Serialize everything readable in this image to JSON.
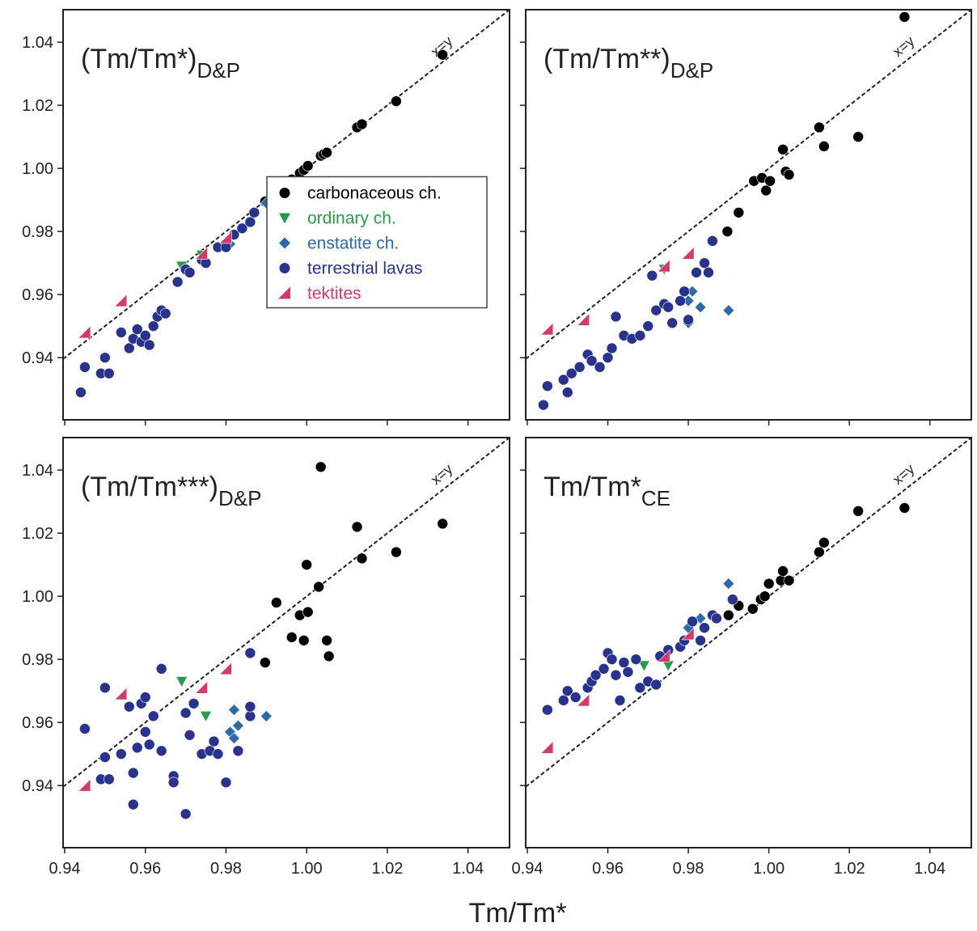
{
  "xlabel": "Tm/Tm*",
  "chart_data": [
    {
      "type": "scatter",
      "title": "(Tm/Tm*)",
      "title_sub": "D&P",
      "annotation": "x=y",
      "legend": "center-right",
      "xlim": [
        0.9396,
        1.0503
      ],
      "ylim": [
        0.9203,
        1.0503
      ],
      "xticks": [
        0.94,
        0.96,
        0.98,
        {
          "value": 1,
          "label": "1.00"
        },
        1.02,
        1.04
      ],
      "yticks": [
        0.94,
        0.96,
        0.98,
        {
          "value": 1,
          "label": "1.00"
        },
        1.02,
        1.04
      ],
      "series": [
        {
          "name": "carbonaceous ch.",
          "color": "#000000",
          "marker": "circle",
          "x": [
            0.9897,
            0.9925,
            0.9963,
            0.9983,
            0.9993,
            1.0003,
            1.0035,
            1.0042,
            1.005,
            1.0125,
            1.0137,
            1.0222,
            1.0337
          ],
          "values": [
            0.9895,
            0.9927,
            0.9965,
            0.9985,
            0.9995,
            1.0008,
            1.004,
            1.0045,
            1.005,
            1.013,
            1.014,
            1.0213,
            1.036
          ]
        },
        {
          "name": "ordinary ch.",
          "color": "#2a9a4a",
          "marker": "triangle-down",
          "x": [
            0.969,
            0.974
          ],
          "values": [
            0.969,
            0.9725
          ]
        },
        {
          "name": "enstatite ch.",
          "color": "#2a6aad",
          "marker": "diamond",
          "x": [
            0.99,
            0.981
          ],
          "values": [
            0.989,
            0.976
          ]
        },
        {
          "name": "terrestrial lavas",
          "color": "#27338d",
          "marker": "circle",
          "x": [
            0.944,
            0.945,
            0.949,
            0.95,
            0.951,
            0.954,
            0.956,
            0.957,
            0.958,
            0.959,
            0.96,
            0.961,
            0.962,
            0.963,
            0.964,
            0.965,
            0.968,
            0.97,
            0.971,
            0.974,
            0.975,
            0.978,
            0.98,
            0.982,
            0.984,
            0.986,
            0.987
          ],
          "values": [
            0.929,
            0.937,
            0.935,
            0.94,
            0.935,
            0.948,
            0.943,
            0.946,
            0.949,
            0.945,
            0.947,
            0.944,
            0.95,
            0.953,
            0.955,
            0.954,
            0.964,
            0.968,
            0.967,
            0.971,
            0.97,
            0.975,
            0.975,
            0.979,
            0.981,
            0.983,
            0.986
          ]
        },
        {
          "name": "tektites",
          "color": "#d33a6a",
          "marker": "flag",
          "x": [
            0.945,
            0.954,
            0.974,
            0.98
          ],
          "values": [
            0.948,
            0.958,
            0.973,
            0.978
          ]
        }
      ]
    },
    {
      "type": "scatter",
      "title": "(Tm/Tm**)",
      "title_sub": "D&P",
      "annotation": "x=y",
      "xlim": [
        0.9396,
        1.0503
      ],
      "ylim": [
        0.9203,
        1.0503
      ],
      "xticks": [
        0.94,
        0.96,
        0.98,
        {
          "value": 1,
          "label": "1.00"
        },
        1.02,
        1.04
      ],
      "yticks": [
        0.94,
        0.96,
        0.98,
        {
          "value": 1,
          "label": "1.00"
        },
        1.02,
        1.04
      ],
      "series": [
        {
          "name": "carbonaceous ch.",
          "color": "#000000",
          "marker": "circle",
          "x": [
            0.9897,
            0.9925,
            0.9963,
            0.9983,
            0.9993,
            1.0003,
            1.0035,
            1.0042,
            1.005,
            1.0125,
            1.0137,
            1.0222,
            1.0337
          ],
          "values": [
            0.98,
            0.986,
            0.996,
            0.997,
            0.993,
            0.996,
            1.006,
            0.999,
            0.998,
            1.013,
            1.007,
            1.01,
            1.048
          ]
        },
        {
          "name": "ordinary ch.",
          "color": "#2a9a4a",
          "marker": "triangle-down",
          "x": [
            0.974
          ],
          "values": [
            0.968
          ]
        },
        {
          "name": "enstatite ch.",
          "color": "#2a6aad",
          "marker": "diamond",
          "x": [
            0.98,
            0.981,
            0.983,
            0.98,
            0.99
          ],
          "values": [
            0.958,
            0.961,
            0.956,
            0.951,
            0.955
          ]
        },
        {
          "name": "terrestrial lavas",
          "color": "#27338d",
          "marker": "circle",
          "x": [
            0.944,
            0.945,
            0.949,
            0.95,
            0.951,
            0.953,
            0.955,
            0.956,
            0.958,
            0.96,
            0.961,
            0.962,
            0.964,
            0.966,
            0.968,
            0.97,
            0.971,
            0.972,
            0.974,
            0.975,
            0.976,
            0.978,
            0.979,
            0.98,
            0.982,
            0.984,
            0.986,
            0.985
          ],
          "values": [
            0.925,
            0.931,
            0.933,
            0.929,
            0.935,
            0.937,
            0.941,
            0.939,
            0.937,
            0.94,
            0.943,
            0.953,
            0.947,
            0.946,
            0.947,
            0.95,
            0.966,
            0.955,
            0.957,
            0.956,
            0.951,
            0.958,
            0.961,
            0.952,
            0.967,
            0.97,
            0.977,
            0.967
          ]
        },
        {
          "name": "tektites",
          "color": "#d33a6a",
          "marker": "flag",
          "x": [
            0.945,
            0.954,
            0.974,
            0.98
          ],
          "values": [
            0.949,
            0.952,
            0.969,
            0.973
          ]
        }
      ]
    },
    {
      "type": "scatter",
      "title": "(Tm/Tm***)",
      "title_sub": "D&P",
      "annotation": "x=y",
      "xlim": [
        0.9396,
        1.0503
      ],
      "ylim": [
        0.9203,
        1.0503
      ],
      "xticks": [
        0.94,
        0.96,
        0.98,
        {
          "value": 1,
          "label": "1.00"
        },
        1.02,
        1.04
      ],
      "yticks": [
        0.94,
        0.96,
        0.98,
        {
          "value": 1,
          "label": "1.00"
        },
        1.02,
        1.04
      ],
      "series": [
        {
          "name": "carbonaceous ch.",
          "color": "#000000",
          "marker": "circle",
          "x": [
            0.9897,
            0.9925,
            0.9963,
            0.9983,
            0.9993,
            1.0003,
            1.0,
            1.003,
            1.0035,
            1.005,
            1.0055,
            1.0125,
            1.0137,
            1.0222,
            1.0337
          ],
          "values": [
            0.979,
            0.998,
            0.987,
            0.994,
            0.986,
            0.995,
            1.01,
            1.003,
            1.041,
            0.986,
            0.981,
            1.022,
            1.012,
            1.014,
            1.023
          ]
        },
        {
          "name": "ordinary ch.",
          "color": "#2a9a4a",
          "marker": "triangle-down",
          "x": [
            0.969,
            0.975
          ],
          "values": [
            0.973,
            0.962
          ]
        },
        {
          "name": "enstatite ch.",
          "color": "#2a6aad",
          "marker": "diamond",
          "x": [
            0.982,
            0.981,
            0.983,
            0.99,
            0.982
          ],
          "values": [
            0.964,
            0.957,
            0.959,
            0.962,
            0.955
          ]
        },
        {
          "name": "terrestrial lavas",
          "color": "#27338d",
          "marker": "circle",
          "x": [
            0.945,
            0.949,
            0.95,
            0.95,
            0.951,
            0.954,
            0.956,
            0.957,
            0.957,
            0.958,
            0.959,
            0.96,
            0.96,
            0.961,
            0.962,
            0.964,
            0.964,
            0.967,
            0.967,
            0.97,
            0.97,
            0.971,
            0.972,
            0.974,
            0.976,
            0.977,
            0.978,
            0.98,
            0.983,
            0.986,
            0.986,
            0.986
          ],
          "values": [
            0.958,
            0.942,
            0.949,
            0.971,
            0.942,
            0.95,
            0.965,
            0.944,
            0.934,
            0.952,
            0.966,
            0.957,
            0.968,
            0.953,
            0.962,
            0.977,
            0.951,
            0.943,
            0.941,
            0.963,
            0.931,
            0.956,
            0.966,
            0.95,
            0.951,
            0.954,
            0.95,
            0.941,
            0.951,
            0.962,
            0.982,
            0.965
          ]
        },
        {
          "name": "tektites",
          "color": "#d33a6a",
          "marker": "flag",
          "x": [
            0.945,
            0.954,
            0.974,
            0.98
          ],
          "values": [
            0.94,
            0.969,
            0.971,
            0.977
          ]
        }
      ]
    },
    {
      "type": "scatter",
      "title": "Tm/Tm*",
      "title_sub": "CE",
      "annotation": "x=y",
      "xlim": [
        0.9396,
        1.0503
      ],
      "ylim": [
        0.9203,
        1.0503
      ],
      "xticks": [
        0.94,
        0.96,
        0.98,
        {
          "value": 1,
          "label": "1.00"
        },
        1.02,
        1.04
      ],
      "yticks": [
        0.94,
        0.96,
        0.98,
        {
          "value": 1,
          "label": "1.00"
        },
        1.02,
        1.04
      ],
      "series": [
        {
          "name": "carbonaceous ch.",
          "color": "#000000",
          "marker": "circle",
          "x": [
            0.99,
            0.9925,
            0.996,
            0.998,
            0.999,
            1.0,
            1.003,
            1.0035,
            1.005,
            1.0125,
            1.0137,
            1.0222,
            1.0337
          ],
          "values": [
            0.994,
            0.997,
            0.996,
            0.999,
            1.0,
            1.004,
            1.005,
            1.008,
            1.005,
            1.014,
            1.017,
            1.027,
            1.028
          ]
        },
        {
          "name": "ordinary ch.",
          "color": "#2a9a4a",
          "marker": "triangle-down",
          "x": [
            0.969,
            0.975
          ],
          "values": [
            0.978,
            0.978
          ]
        },
        {
          "name": "enstatite ch.",
          "color": "#2a6aad",
          "marker": "diamond",
          "x": [
            0.99,
            0.981,
            0.983,
            0.98
          ],
          "values": [
            1.004,
            0.992,
            0.993,
            0.99
          ]
        },
        {
          "name": "terrestrial lavas",
          "color": "#27338d",
          "marker": "circle",
          "x": [
            0.945,
            0.949,
            0.95,
            0.952,
            0.955,
            0.956,
            0.957,
            0.959,
            0.96,
            0.961,
            0.962,
            0.963,
            0.964,
            0.965,
            0.967,
            0.968,
            0.97,
            0.972,
            0.973,
            0.975,
            0.978,
            0.979,
            0.981,
            0.983,
            0.984,
            0.986,
            0.987,
            0.991
          ],
          "values": [
            0.964,
            0.967,
            0.97,
            0.968,
            0.971,
            0.973,
            0.975,
            0.977,
            0.982,
            0.98,
            0.975,
            0.967,
            0.979,
            0.976,
            0.98,
            0.971,
            0.973,
            0.972,
            0.981,
            0.983,
            0.984,
            0.986,
            0.992,
            0.986,
            0.99,
            0.994,
            0.993,
            0.999
          ]
        },
        {
          "name": "tektites",
          "color": "#d33a6a",
          "marker": "flag",
          "x": [
            0.945,
            0.954,
            0.974,
            0.98
          ],
          "values": [
            0.952,
            0.967,
            0.981,
            0.988
          ]
        }
      ]
    }
  ]
}
